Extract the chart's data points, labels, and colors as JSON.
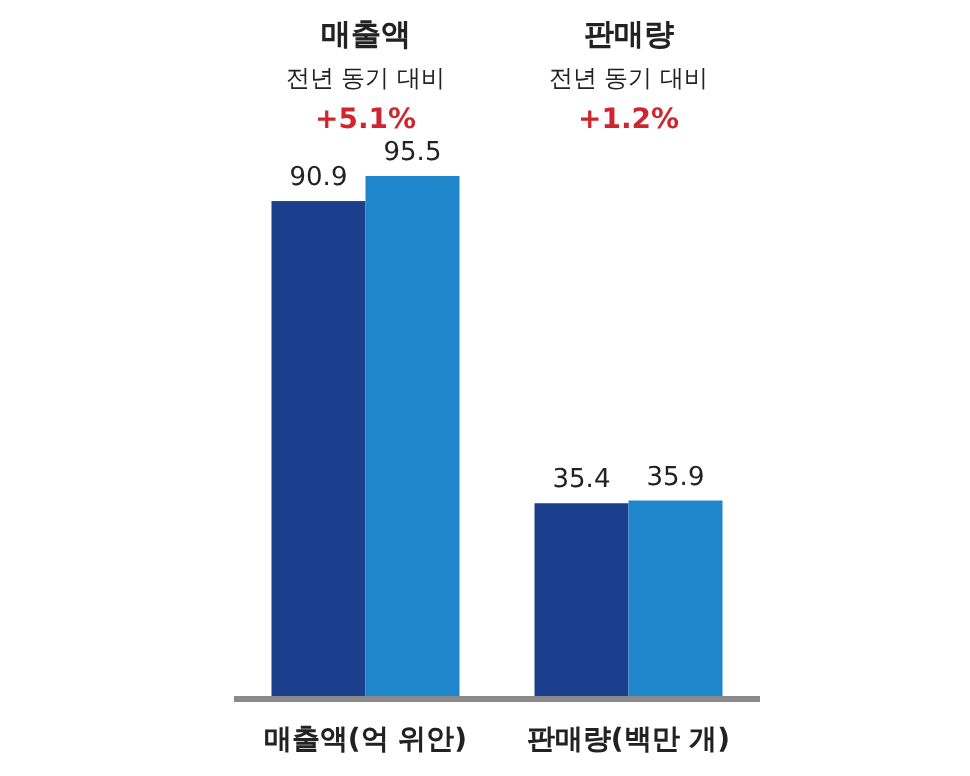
{
  "chart_data": {
    "type": "bar",
    "categories": [
      "매출액(억 위안)",
      "판매량(백만 개)"
    ],
    "series": [
      {
        "color": "#1b3f8c",
        "values": [
          90.9,
          35.4
        ]
      },
      {
        "color": "#1f86cc",
        "values": [
          95.5,
          35.9
        ]
      }
    ],
    "data_labels": true,
    "annotations": [
      "매출액",
      "전년 동기 대비",
      "+5.1%",
      "판매량",
      "전년 동기 대비",
      "+1.2%"
    ]
  }
}
